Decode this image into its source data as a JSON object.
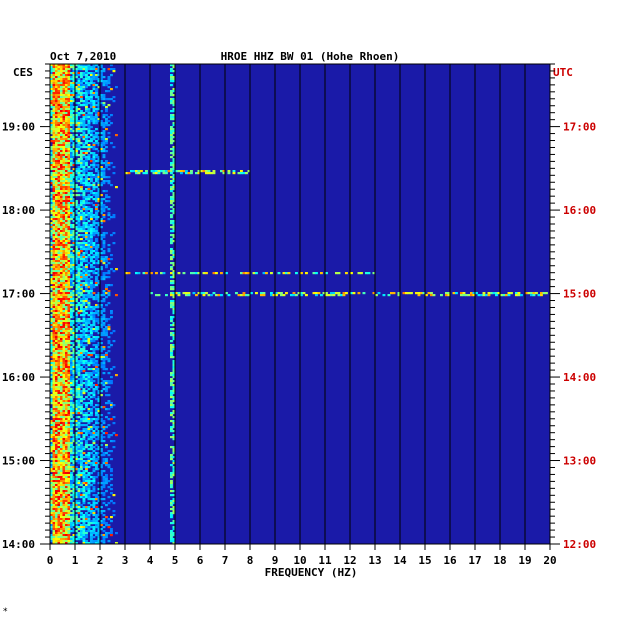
{
  "chart_data": {
    "type": "heatmap",
    "date": "Oct 7,2010",
    "title": "HROE HHZ BW 01 (Hohe Rhoen)",
    "xlabel": "FREQUENCY (HZ)",
    "left_tz": "CES",
    "right_tz": "UTC",
    "x_ticks": [
      "0",
      "1",
      "2",
      "3",
      "4",
      "5",
      "6",
      "7",
      "8",
      "9",
      "10",
      "11",
      "12",
      "13",
      "14",
      "15",
      "16",
      "17",
      "18",
      "19",
      "20"
    ],
    "xlim": [
      0,
      20
    ],
    "left_time_labels": [
      {
        "label": "19:00",
        "hour": 19
      },
      {
        "label": "18:00",
        "hour": 18
      },
      {
        "label": "17:00",
        "hour": 17
      },
      {
        "label": "16:00",
        "hour": 16
      },
      {
        "label": "15:00",
        "hour": 15
      },
      {
        "label": "14:00",
        "hour": 14
      }
    ],
    "right_time_labels": [
      {
        "label": "17:00",
        "hour": 17
      },
      {
        "label": "16:00",
        "hour": 16
      },
      {
        "label": "15:00",
        "hour": 15
      },
      {
        "label": "14:00",
        "hour": 14
      },
      {
        "label": "13:00",
        "hour": 13
      },
      {
        "label": "12:00",
        "hour": 12
      }
    ],
    "time_range_local": [
      14.0,
      19.75
    ],
    "colors": {
      "background": "#1a1aa8",
      "right_labels": "#cc0000",
      "left_labels": "#000000",
      "gridlines": "#000000"
    },
    "features": [
      {
        "kind": "low_freq_band",
        "freq_range": [
          0.1,
          0.8
        ],
        "intensity": "high"
      },
      {
        "kind": "harmonic_line",
        "freq": 4.9,
        "intensity": "medium"
      },
      {
        "kind": "horizontal_event",
        "time_local": 17.0,
        "freq_range": [
          4,
          20
        ],
        "intensity": "medium"
      },
      {
        "kind": "horizontal_event",
        "time_local": 17.25,
        "freq_range": [
          3,
          13
        ],
        "intensity": "medium"
      },
      {
        "kind": "horizontal_event",
        "time_local": 18.45,
        "freq_range": [
          3,
          8
        ],
        "intensity": "low"
      }
    ]
  },
  "footer_mark": "*"
}
